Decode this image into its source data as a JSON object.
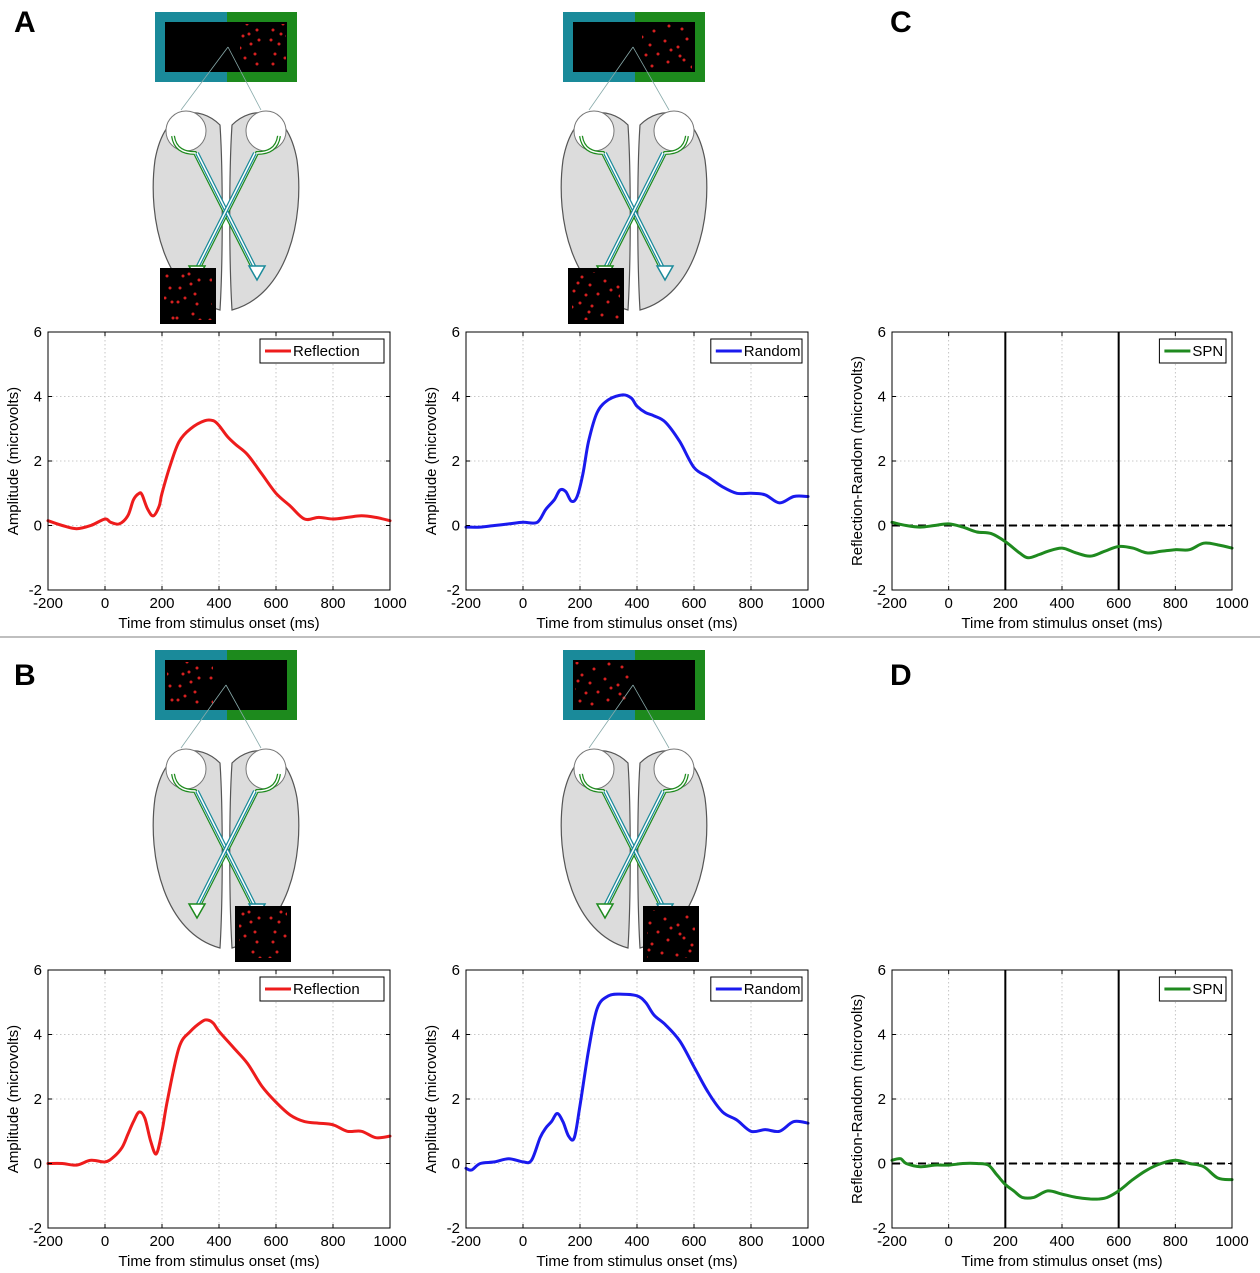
{
  "panel_letters": [
    "A",
    "B",
    "C",
    "D"
  ],
  "colors": {
    "reflection": "#ee1c1c",
    "random": "#1a1aee",
    "spn": "#1f8a1f",
    "teal_frame": "#1a8a9a",
    "green_frame": "#1d8a1d",
    "brain_fill": "#dcdcdc",
    "dot_red": "#d62020"
  },
  "chart_data": [
    {
      "id": "A-reflection",
      "type": "line",
      "xlabel": "Time from stimulus onset (ms)",
      "ylabel": "Amplitude (microvolts)",
      "xlim": [
        -200,
        1000
      ],
      "ylim": [
        -2,
        6
      ],
      "xticks": [
        "-200",
        "0",
        "200",
        "400",
        "600",
        "800",
        "1000"
      ],
      "yticks": [
        "-2",
        "0",
        "2",
        "4",
        "6"
      ],
      "grid": true,
      "legend_position": "top-right",
      "series": [
        {
          "name": "Reflection",
          "color": "#ee1c1c",
          "x": [
            -200,
            -150,
            -100,
            -50,
            0,
            20,
            50,
            80,
            100,
            120,
            130,
            150,
            170,
            190,
            200,
            230,
            260,
            300,
            350,
            380,
            400,
            430,
            460,
            500,
            550,
            600,
            650,
            700,
            750,
            800,
            850,
            900,
            950,
            1000
          ],
          "y": [
            0.15,
            0.0,
            -0.1,
            0.0,
            0.2,
            0.1,
            0.05,
            0.3,
            0.8,
            1.0,
            0.95,
            0.5,
            0.3,
            0.6,
            1.0,
            1.9,
            2.6,
            3.0,
            3.25,
            3.25,
            3.1,
            2.75,
            2.5,
            2.2,
            1.6,
            1.0,
            0.6,
            0.2,
            0.25,
            0.2,
            0.25,
            0.3,
            0.25,
            0.15
          ]
        }
      ]
    },
    {
      "id": "A-random",
      "type": "line",
      "xlabel": "Time from stimulus onset (ms)",
      "ylabel": "Amplitude (microvolts)",
      "xlim": [
        -200,
        1000
      ],
      "ylim": [
        -2,
        6
      ],
      "xticks": [
        "-200",
        "0",
        "200",
        "400",
        "600",
        "800",
        "1000"
      ],
      "yticks": [
        "-2",
        "0",
        "2",
        "4",
        "6"
      ],
      "grid": true,
      "legend_position": "top-right",
      "series": [
        {
          "name": "Random",
          "color": "#1a1aee",
          "x": [
            -200,
            -150,
            -100,
            -50,
            0,
            50,
            80,
            110,
            130,
            150,
            170,
            190,
            210,
            230,
            260,
            300,
            350,
            380,
            400,
            430,
            460,
            500,
            550,
            600,
            650,
            700,
            750,
            800,
            850,
            900,
            950,
            1000
          ],
          "y": [
            -0.05,
            -0.05,
            0.0,
            0.05,
            0.1,
            0.1,
            0.5,
            0.8,
            1.1,
            1.05,
            0.75,
            0.9,
            1.6,
            2.6,
            3.5,
            3.9,
            4.05,
            3.95,
            3.7,
            3.5,
            3.4,
            3.2,
            2.6,
            1.8,
            1.5,
            1.2,
            1.0,
            1.0,
            0.95,
            0.7,
            0.9,
            0.9
          ]
        }
      ]
    },
    {
      "id": "C-spn",
      "type": "line",
      "xlabel": "Time from stimulus onset (ms)",
      "ylabel": "Reflection-Random (microvolts)",
      "xlim": [
        -200,
        1000
      ],
      "ylim": [
        -2,
        6
      ],
      "xticks": [
        "-200",
        "0",
        "200",
        "400",
        "600",
        "800",
        "1000"
      ],
      "yticks": [
        "-2",
        "0",
        "2",
        "4",
        "6"
      ],
      "grid": true,
      "legend_position": "top-right",
      "zero_line": true,
      "vlines": [
        200,
        600
      ],
      "series": [
        {
          "name": "SPN",
          "color": "#1f8a1f",
          "x": [
            -200,
            -150,
            -100,
            -50,
            0,
            50,
            100,
            150,
            200,
            250,
            280,
            320,
            350,
            400,
            450,
            500,
            550,
            600,
            650,
            700,
            750,
            800,
            850,
            900,
            950,
            1000
          ],
          "y": [
            0.1,
            0.0,
            -0.05,
            0.0,
            0.05,
            -0.05,
            -0.2,
            -0.25,
            -0.5,
            -0.85,
            -1.0,
            -0.9,
            -0.8,
            -0.7,
            -0.85,
            -0.95,
            -0.8,
            -0.65,
            -0.7,
            -0.85,
            -0.8,
            -0.75,
            -0.75,
            -0.55,
            -0.6,
            -0.7
          ]
        }
      ]
    },
    {
      "id": "B-reflection",
      "type": "line",
      "xlabel": "Time from stimulus onset (ms)",
      "ylabel": "Amplitude (microvolts)",
      "xlim": [
        -200,
        1000
      ],
      "ylim": [
        -2,
        6
      ],
      "xticks": [
        "-200",
        "0",
        "200",
        "400",
        "600",
        "800",
        "1000"
      ],
      "yticks": [
        "-2",
        "0",
        "2",
        "4",
        "6"
      ],
      "grid": true,
      "legend_position": "top-right",
      "series": [
        {
          "name": "Reflection",
          "color": "#ee1c1c",
          "x": [
            -200,
            -150,
            -100,
            -50,
            0,
            30,
            60,
            80,
            100,
            120,
            140,
            160,
            180,
            200,
            220,
            260,
            300,
            340,
            360,
            380,
            400,
            450,
            500,
            550,
            600,
            650,
            700,
            750,
            800,
            850,
            900,
            950,
            1000
          ],
          "y": [
            0.0,
            0.0,
            -0.05,
            0.1,
            0.05,
            0.2,
            0.5,
            0.9,
            1.3,
            1.6,
            1.4,
            0.7,
            0.3,
            1.0,
            2.0,
            3.6,
            4.1,
            4.4,
            4.45,
            4.35,
            4.1,
            3.6,
            3.1,
            2.4,
            1.9,
            1.5,
            1.3,
            1.25,
            1.2,
            1.0,
            1.0,
            0.8,
            0.85
          ]
        }
      ]
    },
    {
      "id": "B-random",
      "type": "line",
      "xlabel": "Time from stimulus onset (ms)",
      "ylabel": "Amplitude (microvolts)",
      "xlim": [
        -200,
        1000
      ],
      "ylim": [
        -2,
        6
      ],
      "xticks": [
        "-200",
        "0",
        "200",
        "400",
        "600",
        "800",
        "1000"
      ],
      "yticks": [
        "-2",
        "0",
        "2",
        "4",
        "6"
      ],
      "grid": true,
      "legend_position": "top-right",
      "series": [
        {
          "name": "Random",
          "color": "#1a1aee",
          "x": [
            -200,
            -180,
            -150,
            -100,
            -50,
            0,
            30,
            60,
            80,
            100,
            120,
            140,
            160,
            180,
            200,
            230,
            260,
            300,
            350,
            400,
            430,
            460,
            500,
            550,
            600,
            650,
            700,
            750,
            800,
            850,
            900,
            950,
            1000
          ],
          "y": [
            -0.15,
            -0.2,
            0.0,
            0.05,
            0.15,
            0.05,
            0.1,
            0.8,
            1.1,
            1.3,
            1.55,
            1.3,
            0.85,
            0.8,
            1.8,
            3.5,
            4.8,
            5.2,
            5.25,
            5.2,
            5.0,
            4.6,
            4.3,
            3.8,
            3.0,
            2.2,
            1.6,
            1.35,
            1.0,
            1.05,
            1.0,
            1.3,
            1.25
          ]
        }
      ]
    },
    {
      "id": "D-spn",
      "type": "line",
      "xlabel": "Time from stimulus onset (ms)",
      "ylabel": "Reflection-Random (microvolts)",
      "xlim": [
        -200,
        1000
      ],
      "ylim": [
        -2,
        6
      ],
      "xticks": [
        "-200",
        "0",
        "200",
        "400",
        "600",
        "800",
        "1000"
      ],
      "yticks": [
        "-2",
        "0",
        "2",
        "4",
        "6"
      ],
      "grid": true,
      "legend_position": "top-right",
      "zero_line": true,
      "vlines": [
        200,
        600
      ],
      "series": [
        {
          "name": "SPN",
          "color": "#1f8a1f",
          "x": [
            -200,
            -170,
            -150,
            -100,
            -50,
            0,
            50,
            100,
            140,
            170,
            200,
            230,
            260,
            300,
            350,
            400,
            450,
            500,
            530,
            560,
            600,
            650,
            700,
            750,
            800,
            850,
            900,
            950,
            1000
          ],
          "y": [
            0.1,
            0.15,
            0.0,
            -0.1,
            -0.05,
            -0.05,
            0.0,
            0.0,
            -0.05,
            -0.35,
            -0.65,
            -0.85,
            -1.05,
            -1.05,
            -0.85,
            -0.95,
            -1.05,
            -1.1,
            -1.1,
            -1.05,
            -0.85,
            -0.5,
            -0.2,
            0.0,
            0.1,
            0.0,
            -0.1,
            -0.45,
            -0.5
          ]
        }
      ]
    }
  ]
}
